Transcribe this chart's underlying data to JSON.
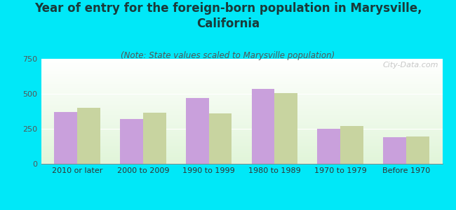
{
  "title": "Year of entry for the foreign-born population in Marysville,\nCalifornia",
  "subtitle": "(Note: State values scaled to Marysville population)",
  "categories": [
    "2010 or later",
    "2000 to 2009",
    "1990 to 1999",
    "1980 to 1989",
    "1970 to 1979",
    "Before 1970"
  ],
  "marysville_values": [
    370,
    320,
    470,
    535,
    248,
    190
  ],
  "california_values": [
    400,
    365,
    360,
    505,
    268,
    195
  ],
  "marysville_color": "#c9a0dc",
  "california_color": "#c8d4a0",
  "background_color": "#00e8f8",
  "ylim": [
    0,
    750
  ],
  "yticks": [
    0,
    250,
    500,
    750
  ],
  "bar_width": 0.35,
  "title_fontsize": 12,
  "subtitle_fontsize": 8.5,
  "axis_fontsize": 8,
  "legend_fontsize": 9,
  "watermark": "City-Data.com"
}
